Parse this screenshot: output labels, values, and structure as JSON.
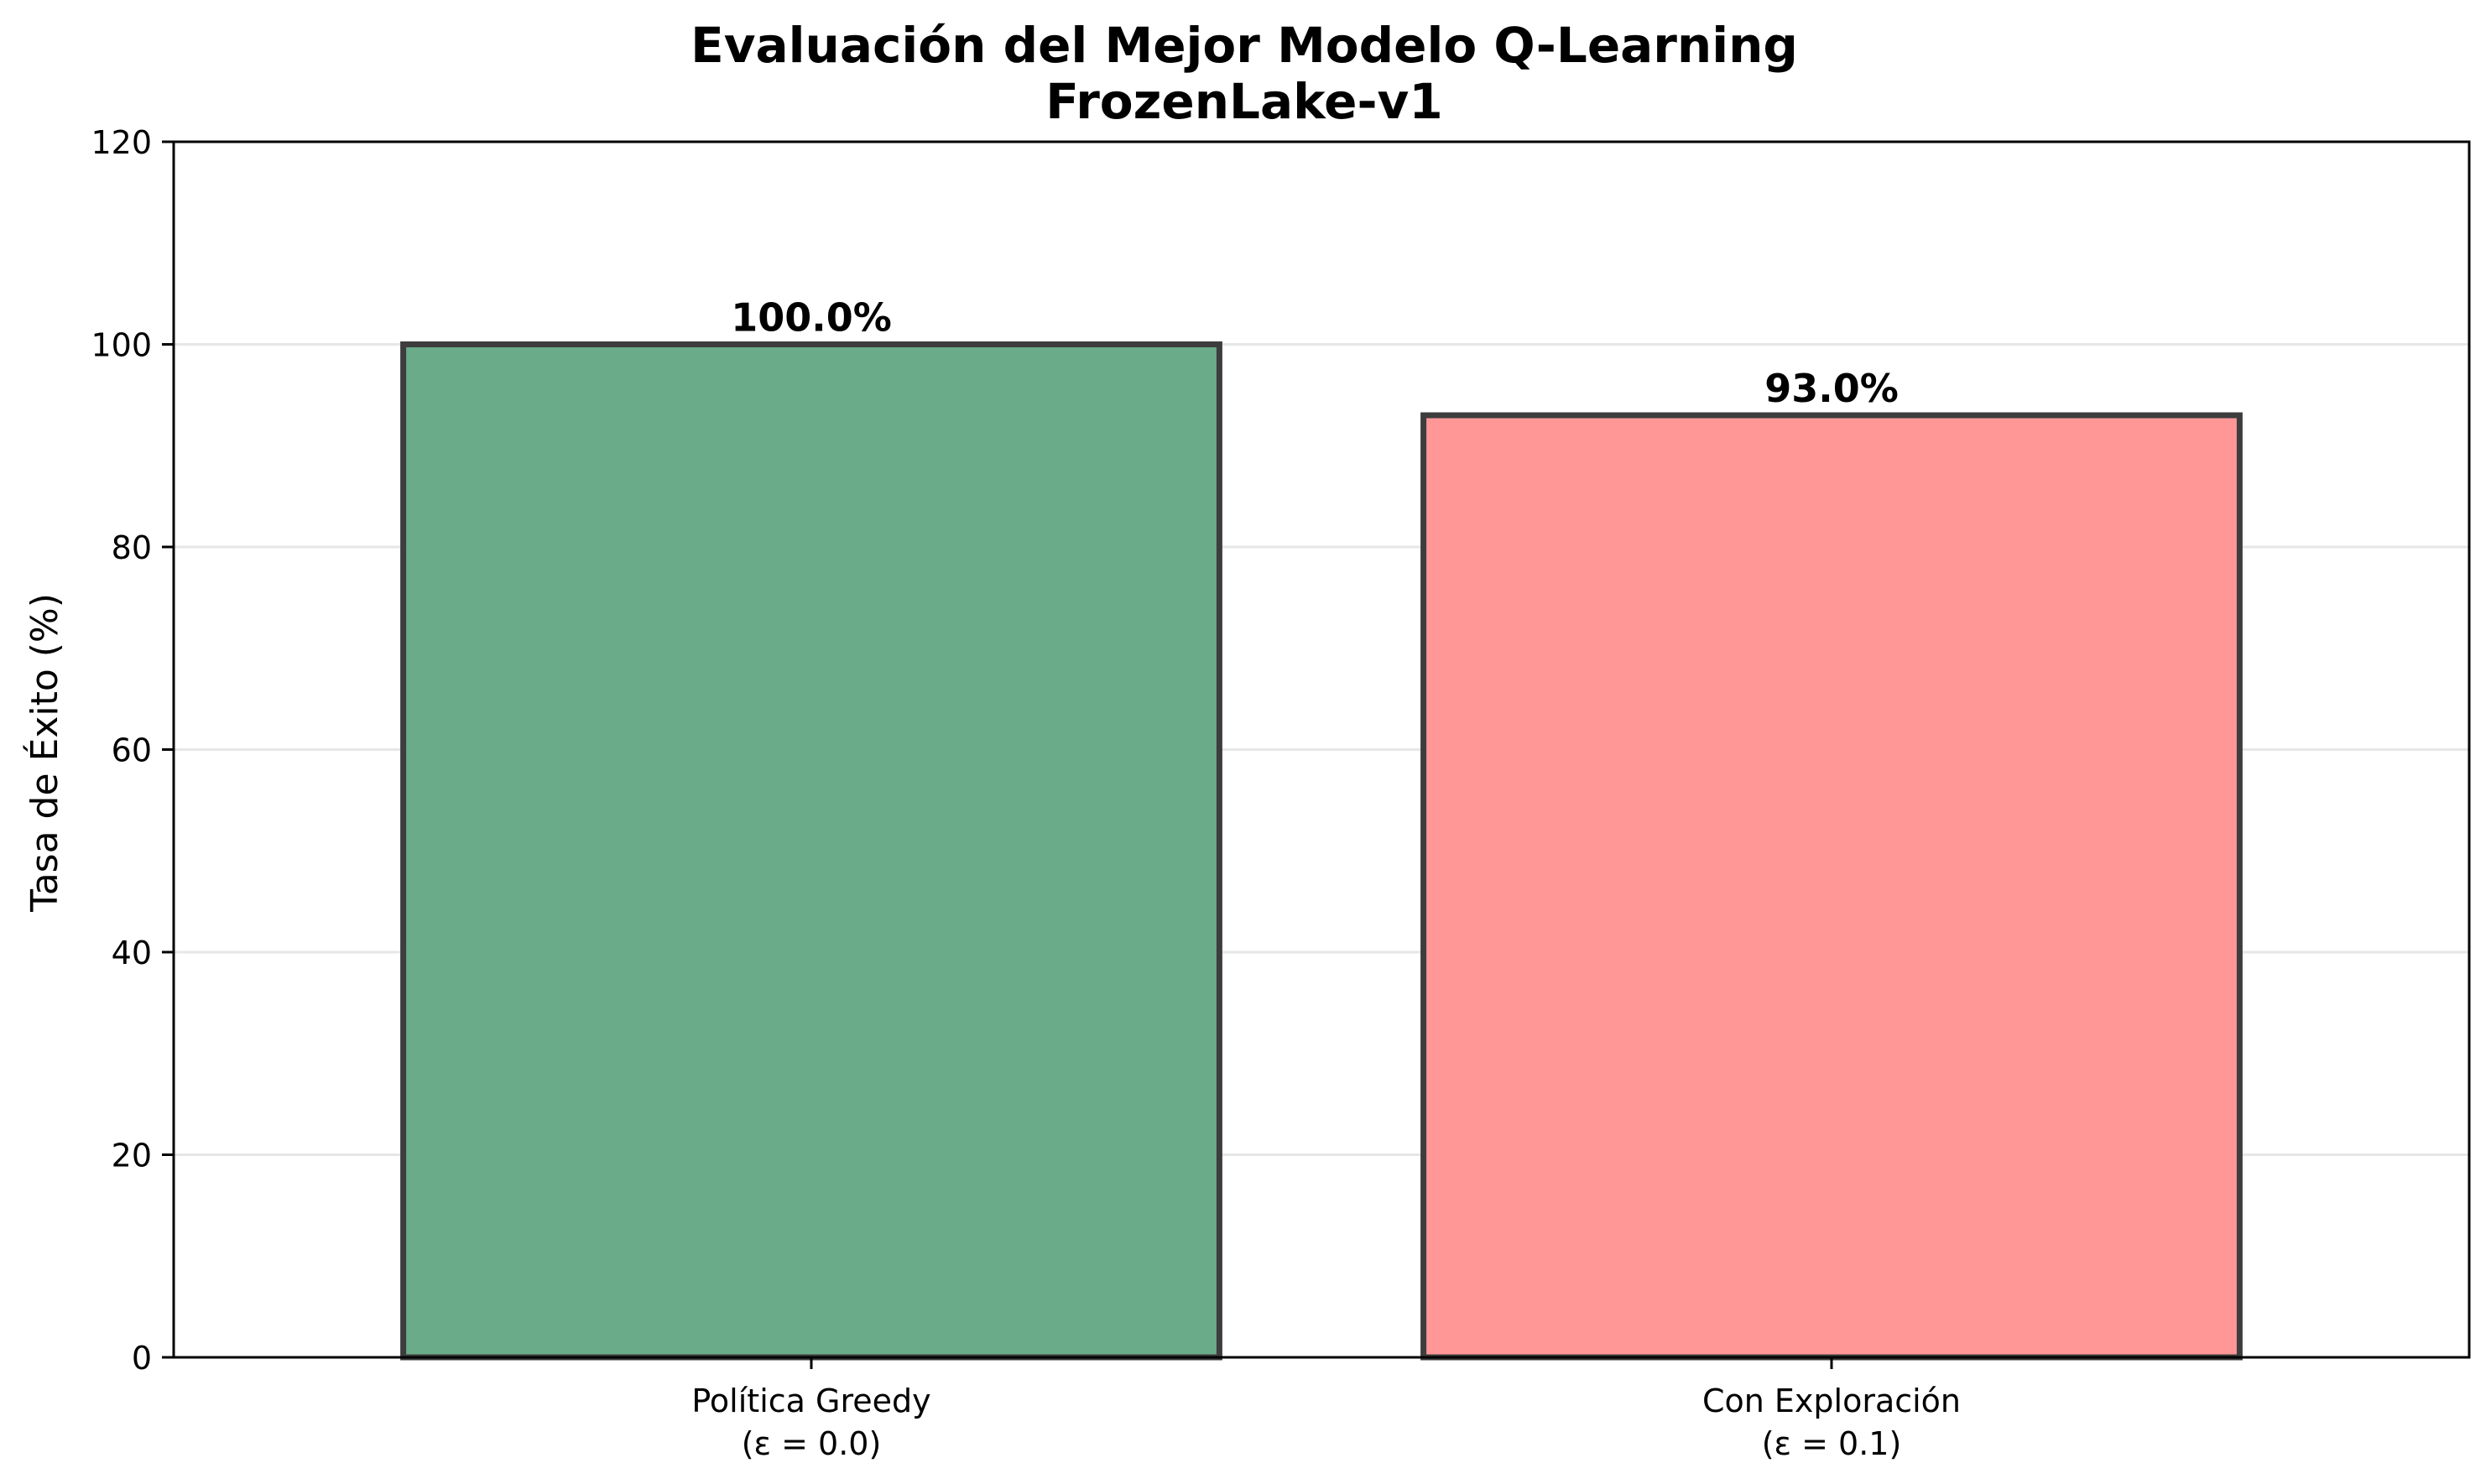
{
  "chart_data": {
    "type": "bar",
    "title": "Evaluación del Mejor Modelo Q-Learning",
    "subtitle": "FrozenLake-v1",
    "xlabel": "",
    "ylabel": "Tasa de Éxito (%)",
    "ylim": [
      0,
      120
    ],
    "yticks": [
      "0",
      "20",
      "40",
      "60",
      "80",
      "100",
      "120"
    ],
    "grid": "y",
    "legend": "none",
    "categories": [
      [
        "Política Greedy",
        "(ε = 0.0)"
      ],
      [
        "Con Exploración",
        "(ε = 0.1)"
      ]
    ],
    "values": [
      100.0,
      93.0
    ],
    "data_labels": [
      "100.0%",
      "93.0%"
    ],
    "colors": [
      "#6aab89",
      "#ff9797"
    ],
    "edge_color": "#3d3d3d",
    "grid_color": "#e6e6e6"
  }
}
